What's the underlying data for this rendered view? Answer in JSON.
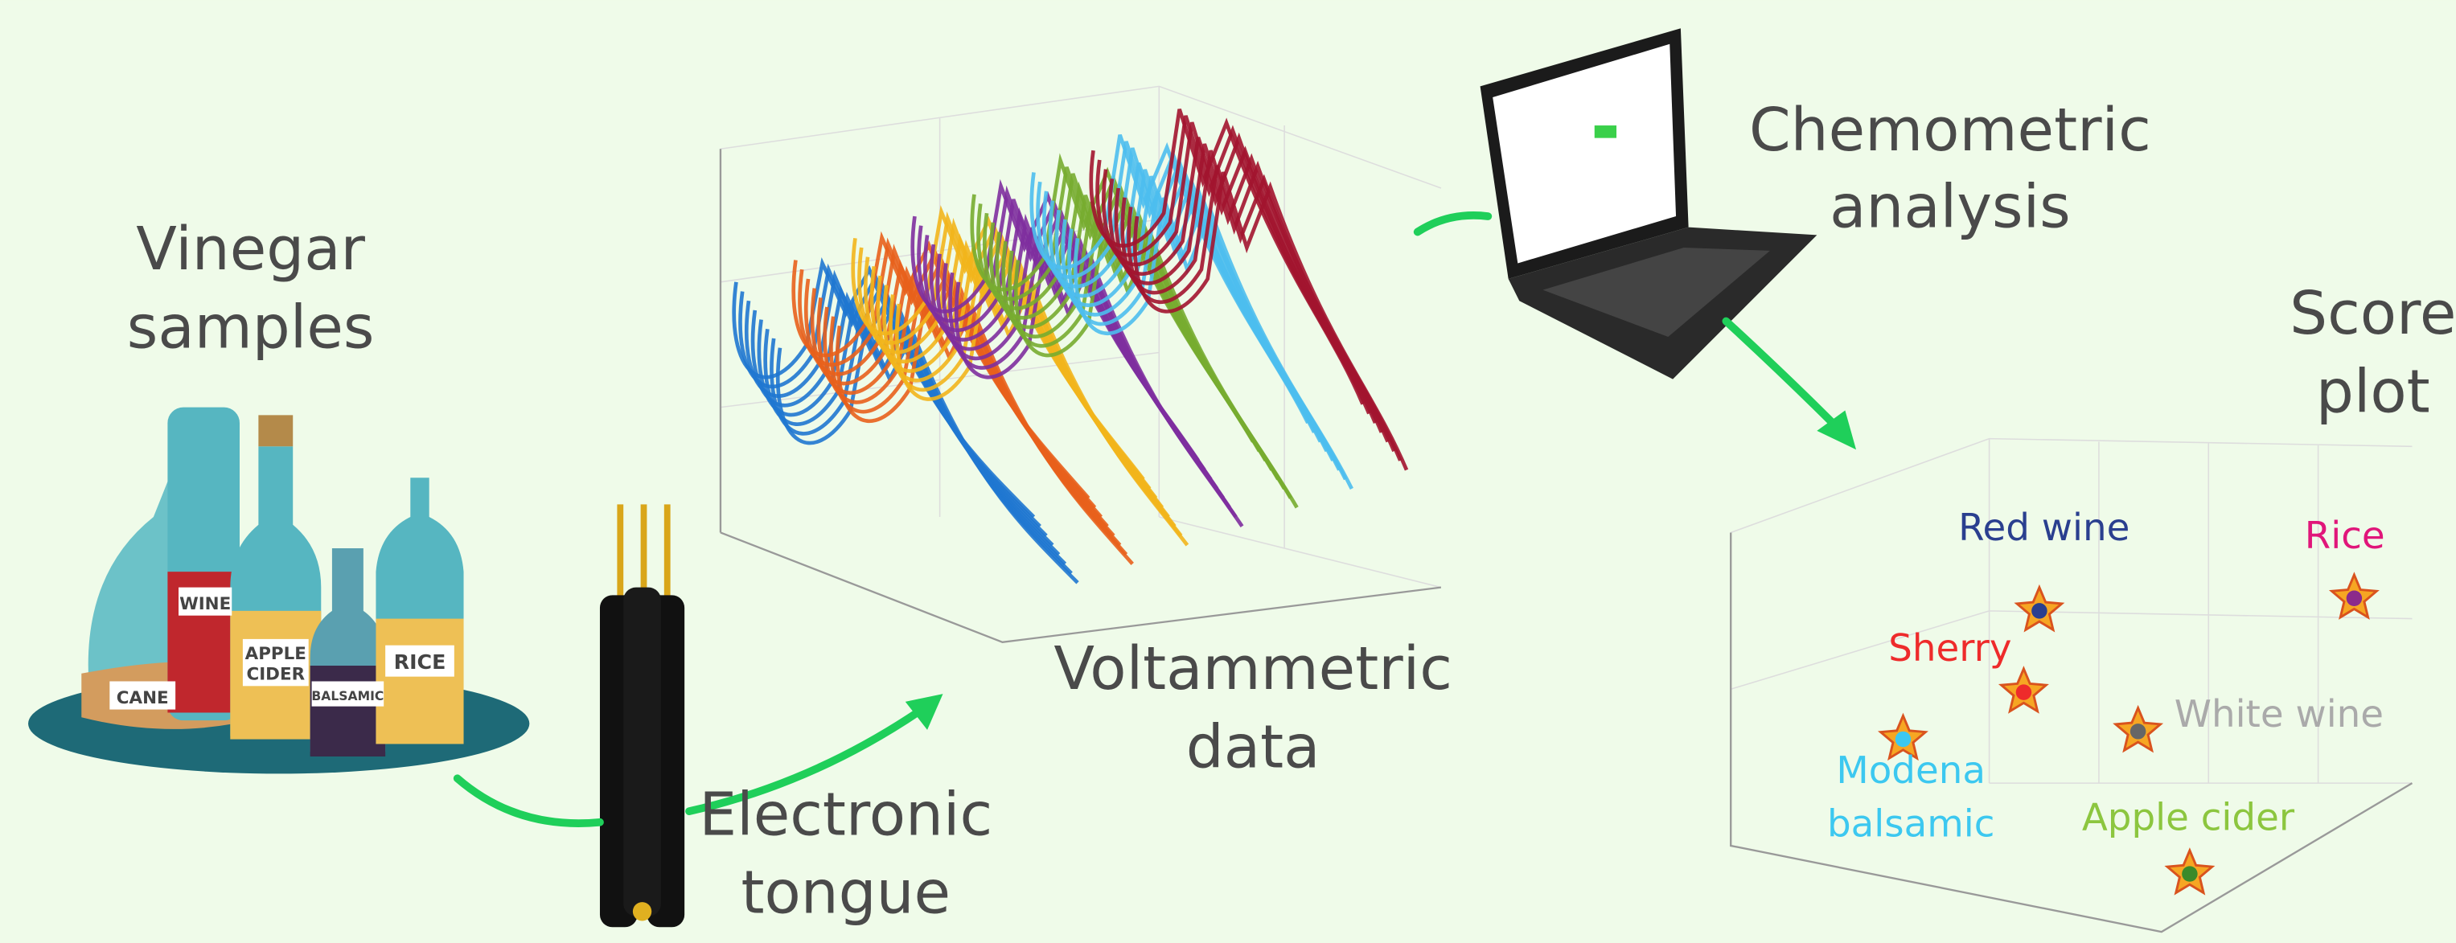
{
  "steps": {
    "samples": {
      "lines": [
        "Vinegar",
        "samples"
      ]
    },
    "tongue": {
      "lines": [
        "Electronic",
        "tongue"
      ]
    },
    "voltammetric": {
      "lines": [
        "Voltammetric",
        "data"
      ]
    },
    "chemometric": {
      "lines": [
        "Chemometric",
        "analysis"
      ]
    },
    "score": {
      "lines": [
        "Score",
        "plot"
      ]
    }
  },
  "bottles": {
    "cane": "CANE",
    "wine": "WINE",
    "apple": [
      "APPLE",
      "CIDER"
    ],
    "balsamic": "BALSAMIC",
    "rice": "RICE"
  },
  "score_plot": {
    "groups": [
      {
        "lines": [
          "Red wine"
        ]
      },
      {
        "lines": [
          "Rice"
        ]
      },
      {
        "lines": [
          "Sherry"
        ]
      },
      {
        "lines": [
          "White wine"
        ]
      },
      {
        "lines": [
          "Modena",
          "balsamic"
        ]
      },
      {
        "lines": [
          "Apple cider"
        ]
      }
    ]
  }
}
